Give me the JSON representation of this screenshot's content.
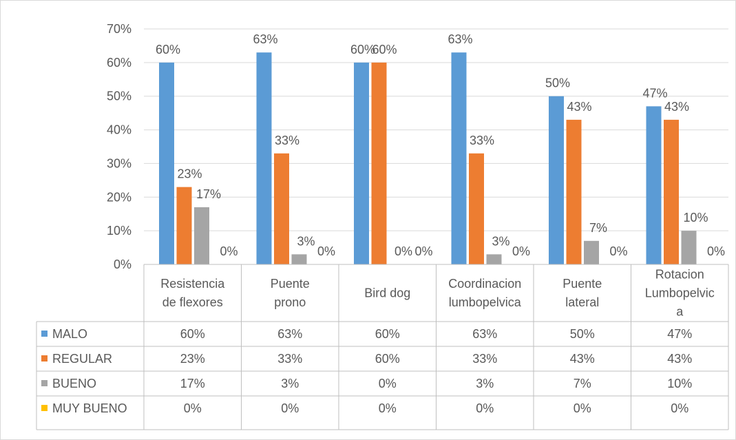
{
  "chart_data": {
    "type": "bar",
    "categories": [
      [
        "Resistencia",
        "de flexores"
      ],
      [
        "Puente",
        "prono"
      ],
      [
        "Bird dog"
      ],
      [
        "Coordinacion",
        "lumbopelvica"
      ],
      [
        "Puente",
        "lateral"
      ],
      [
        "Rotacion",
        "Lumbopelvic",
        "a"
      ]
    ],
    "series": [
      {
        "name": "MALO",
        "color": "#5B9BD5",
        "values": [
          0.6,
          0.63,
          0.6,
          0.63,
          0.5,
          0.47
        ],
        "labels": [
          "60%",
          "63%",
          "60%",
          "63%",
          "50%",
          "47%"
        ]
      },
      {
        "name": "REGULAR",
        "color": "#ED7D31",
        "values": [
          0.23,
          0.33,
          0.6,
          0.33,
          0.43,
          0.43
        ],
        "labels": [
          "23%",
          "33%",
          "60%",
          "33%",
          "43%",
          "43%"
        ]
      },
      {
        "name": "BUENO",
        "color": "#A5A5A5",
        "values": [
          0.17,
          0.03,
          0.0,
          0.03,
          0.07,
          0.1
        ],
        "labels": [
          "17%",
          "3%",
          "0%",
          "3%",
          "7%",
          "10%"
        ]
      },
      {
        "name": "MUY BUENO",
        "color": "#FFC000",
        "values": [
          0,
          0,
          0,
          0,
          0,
          0
        ],
        "labels": [
          "0%",
          "0%",
          "0%",
          "0%",
          "0%",
          "0%"
        ]
      }
    ],
    "ylim": [
      0,
      0.7
    ],
    "yticks": [
      "0%",
      "10%",
      "20%",
      "30%",
      "40%",
      "50%",
      "60%",
      "70%"
    ],
    "grid": true,
    "legend": "data-table"
  }
}
